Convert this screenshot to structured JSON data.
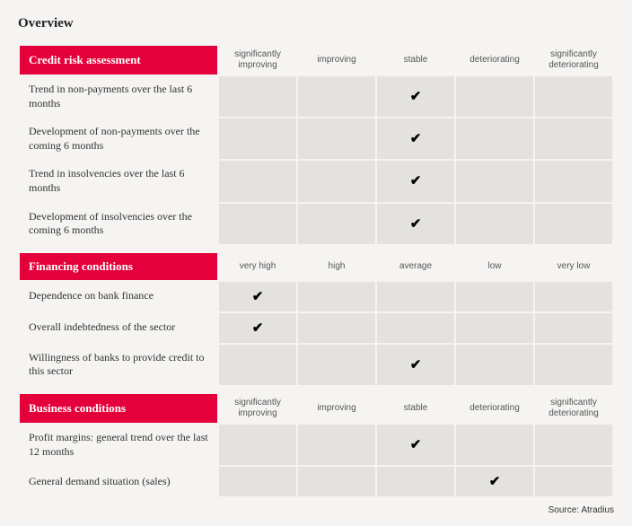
{
  "title": "Overview",
  "source": "Source: Atradius",
  "checkmark": "✔",
  "colors": {
    "header_bg": "#e4003a",
    "header_fg": "#ffffff",
    "cell_bg": "#e3e2df",
    "page_bg": "#f5f4f2"
  },
  "sections": [
    {
      "title": "Credit risk assessment",
      "headers": [
        "significantly improving",
        "improving",
        "stable",
        "deteriorating",
        "significantly deteriorating"
      ],
      "rows": [
        {
          "label": "Trend in non-payments over the last 6 months",
          "checked": 2
        },
        {
          "label": "Development of non-payments over the coming 6 months",
          "checked": 2
        },
        {
          "label": "Trend in insolvencies over the last 6 months",
          "checked": 2
        },
        {
          "label": "Development of insolvencies over the coming 6 months",
          "checked": 2
        }
      ]
    },
    {
      "title": "Financing conditions",
      "headers": [
        "very high",
        "high",
        "average",
        "low",
        "very low"
      ],
      "rows": [
        {
          "label": "Dependence on bank finance",
          "checked": 0
        },
        {
          "label": "Overall indebtedness of the sector",
          "checked": 0
        },
        {
          "label": "Willingness of banks to provide credit to this sector",
          "checked": 2
        }
      ]
    },
    {
      "title": "Business conditions",
      "headers": [
        "significantly improving",
        "improving",
        "stable",
        "deteriorating",
        "significantly deteriorating"
      ],
      "rows": [
        {
          "label": "Profit margins: general trend over the last 12 months",
          "checked": 2
        },
        {
          "label": "General demand situation (sales)",
          "checked": 3
        }
      ]
    }
  ]
}
